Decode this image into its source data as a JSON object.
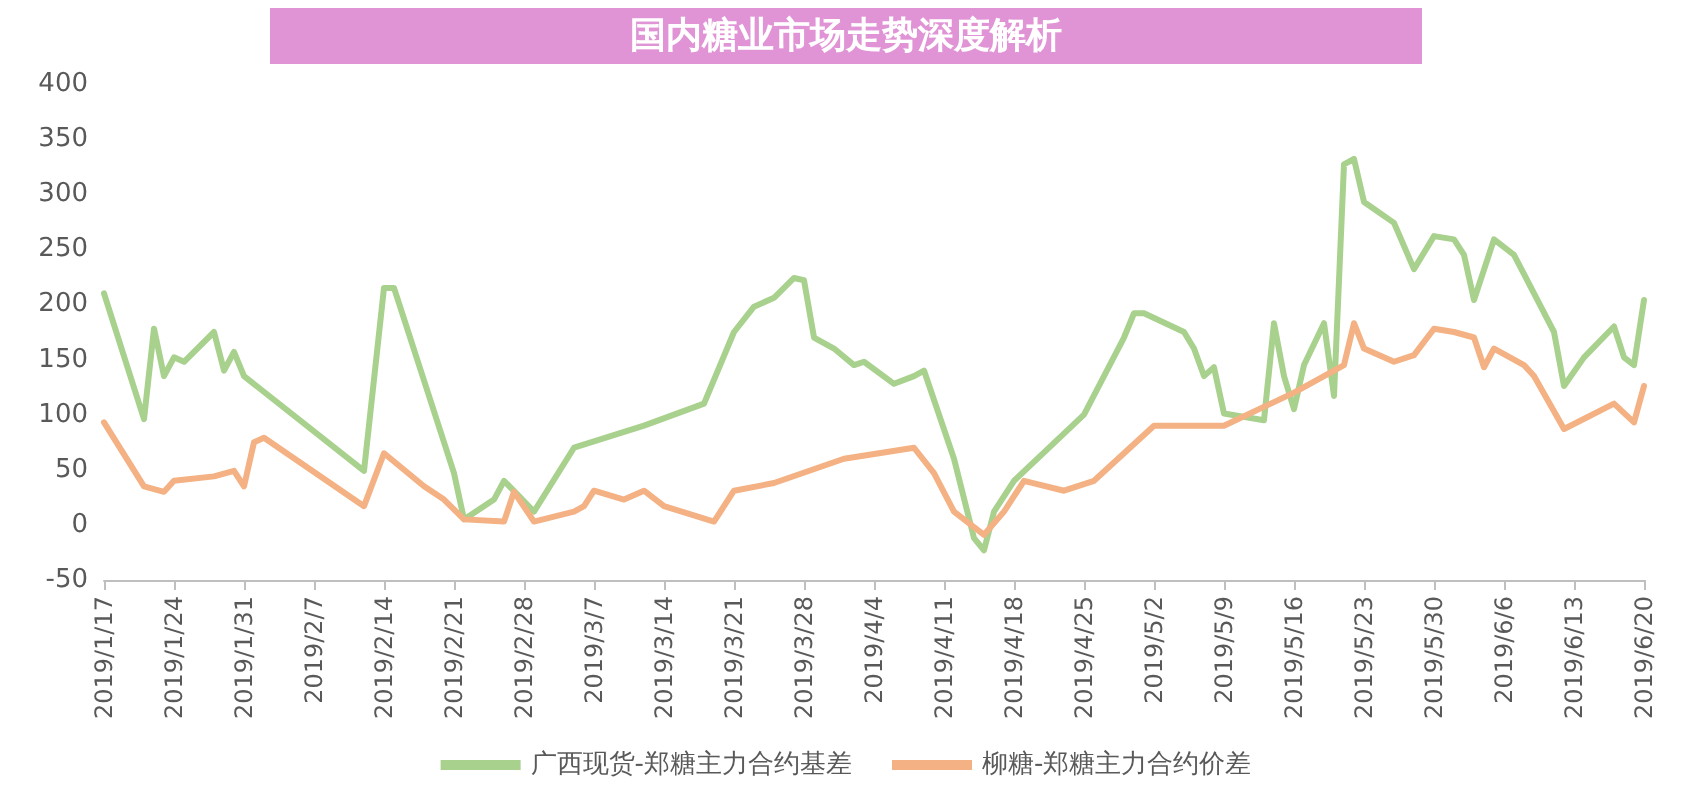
{
  "chart_data": {
    "type": "line",
    "title": "国内糖业市场走势深度解析",
    "xlim": [
      "2019-01-17",
      "2019-06-20"
    ],
    "xticks": [
      {
        "value": "2019-01-17",
        "label": "2019/1/17"
      },
      {
        "value": "2019-01-24",
        "label": "2019/1/24"
      },
      {
        "value": "2019-01-31",
        "label": "2019/1/31"
      },
      {
        "value": "2019-02-07",
        "label": "2019/2/7"
      },
      {
        "value": "2019-02-14",
        "label": "2019/2/14"
      },
      {
        "value": "2019-02-21",
        "label": "2019/2/21"
      },
      {
        "value": "2019-02-28",
        "label": "2019/2/28"
      },
      {
        "value": "2019-03-07",
        "label": "2019/3/7"
      },
      {
        "value": "2019-03-14",
        "label": "2019/3/14"
      },
      {
        "value": "2019-03-21",
        "label": "2019/3/21"
      },
      {
        "value": "2019-03-28",
        "label": "2019/3/28"
      },
      {
        "value": "2019-04-04",
        "label": "2019/4/4"
      },
      {
        "value": "2019-04-11",
        "label": "2019/4/11"
      },
      {
        "value": "2019-04-18",
        "label": "2019/4/18"
      },
      {
        "value": "2019-04-25",
        "label": "2019/4/25"
      },
      {
        "value": "2019-05-02",
        "label": "2019/5/2"
      },
      {
        "value": "2019-05-09",
        "label": "2019/5/9"
      },
      {
        "value": "2019-05-16",
        "label": "2019/5/16"
      },
      {
        "value": "2019-05-23",
        "label": "2019/5/23"
      },
      {
        "value": "2019-05-30",
        "label": "2019/5/30"
      },
      {
        "value": "2019-06-06",
        "label": "2019/6/6"
      },
      {
        "value": "2019-06-13",
        "label": "2019/6/13"
      },
      {
        "value": "2019-06-20",
        "label": "2019/6/20"
      }
    ],
    "ylim": [
      -50,
      400
    ],
    "yticks": [
      -50,
      0,
      50,
      100,
      150,
      200,
      250,
      300,
      350,
      400
    ],
    "grid": false,
    "legend": "bottom",
    "marker": "none",
    "line_style": "solid",
    "series": [
      {
        "name": "广西现货-郑糖主力合约基差",
        "color": "#a9d18e",
        "x": [
          "2019-01-17",
          "2019-01-21",
          "2019-01-22",
          "2019-01-23",
          "2019-01-24",
          "2019-01-25",
          "2019-01-28",
          "2019-01-29",
          "2019-01-30",
          "2019-01-31",
          "2019-02-12",
          "2019-02-14",
          "2019-02-15",
          "2019-02-21",
          "2019-02-22",
          "2019-02-25",
          "2019-02-26",
          "2019-03-01",
          "2019-03-05",
          "2019-03-12",
          "2019-03-18",
          "2019-03-21",
          "2019-03-23",
          "2019-03-25",
          "2019-03-27",
          "2019-03-28",
          "2019-03-29",
          "2019-03-31",
          "2019-04-02",
          "2019-04-03",
          "2019-04-06",
          "2019-04-08",
          "2019-04-09",
          "2019-04-12",
          "2019-04-14",
          "2019-04-15",
          "2019-04-16",
          "2019-04-18",
          "2019-04-25",
          "2019-04-29",
          "2019-04-30",
          "2019-05-01",
          "2019-05-05",
          "2019-05-06",
          "2019-05-07",
          "2019-05-08",
          "2019-05-09",
          "2019-05-13",
          "2019-05-14",
          "2019-05-15",
          "2019-05-16",
          "2019-05-17",
          "2019-05-19",
          "2019-05-20",
          "2019-05-21",
          "2019-05-22",
          "2019-05-23",
          "2019-05-26",
          "2019-05-28",
          "2019-05-30",
          "2019-06-01",
          "2019-06-02",
          "2019-06-03",
          "2019-06-05",
          "2019-06-07",
          "2019-06-09",
          "2019-06-11",
          "2019-06-12",
          "2019-06-14",
          "2019-06-17",
          "2019-06-18",
          "2019-06-19",
          "2019-06-20"
        ],
        "values": [
          210,
          96,
          178,
          135,
          152,
          148,
          175,
          140,
          157,
          135,
          49,
          215,
          215,
          47,
          5,
          23,
          40,
          12,
          70,
          90,
          110,
          175,
          198,
          206,
          224,
          222,
          170,
          160,
          145,
          148,
          128,
          135,
          140,
          60,
          -12,
          -23,
          12,
          40,
          100,
          170,
          192,
          192,
          175,
          160,
          135,
          143,
          101,
          95,
          183,
          135,
          105,
          145,
          183,
          117,
          327,
          332,
          293,
          274,
          232,
          262,
          259,
          245,
          204,
          259,
          245,
          210,
          175,
          126,
          152,
          180,
          152,
          145,
          204
        ]
      },
      {
        "name": "柳糖-郑糖主力合约价差",
        "color": "#f4b183",
        "x": [
          "2019-01-17",
          "2019-01-21",
          "2019-01-23",
          "2019-01-24",
          "2019-01-28",
          "2019-01-30",
          "2019-01-31",
          "2019-02-01",
          "2019-02-02",
          "2019-02-12",
          "2019-02-14",
          "2019-02-18",
          "2019-02-20",
          "2019-02-22",
          "2019-02-26",
          "2019-02-27",
          "2019-03-01",
          "2019-03-05",
          "2019-03-06",
          "2019-03-07",
          "2019-03-10",
          "2019-03-12",
          "2019-03-14",
          "2019-03-19",
          "2019-03-21",
          "2019-03-25",
          "2019-04-01",
          "2019-04-08",
          "2019-04-10",
          "2019-04-12",
          "2019-04-15",
          "2019-04-17",
          "2019-04-19",
          "2019-04-23",
          "2019-04-26",
          "2019-05-02",
          "2019-05-09",
          "2019-05-16",
          "2019-05-21",
          "2019-05-22",
          "2019-05-23",
          "2019-05-26",
          "2019-05-28",
          "2019-05-30",
          "2019-06-01",
          "2019-06-03",
          "2019-06-04",
          "2019-06-05",
          "2019-06-08",
          "2019-06-09",
          "2019-06-12",
          "2019-06-17",
          "2019-06-19",
          "2019-06-20"
        ],
        "values": [
          93,
          35,
          30,
          40,
          44,
          49,
          35,
          75,
          79,
          17,
          65,
          35,
          23,
          5,
          3,
          30,
          3,
          12,
          17,
          31,
          23,
          31,
          17,
          3,
          31,
          38,
          60,
          70,
          47,
          12,
          -9,
          12,
          40,
          31,
          40,
          90,
          90,
          120,
          145,
          183,
          160,
          148,
          154,
          178,
          175,
          170,
          143,
          160,
          145,
          135,
          87,
          110,
          93,
          126
        ]
      }
    ]
  }
}
